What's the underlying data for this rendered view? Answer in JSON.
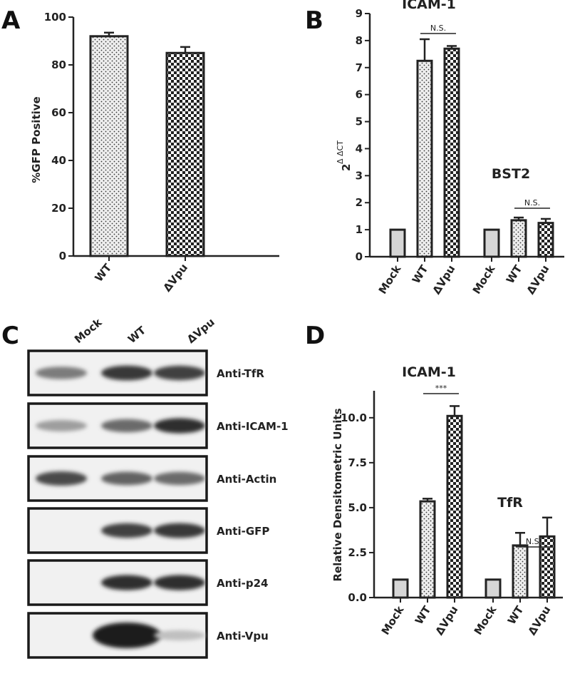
{
  "panels": {
    "A": "A",
    "B": "B",
    "C": "C",
    "D": "D"
  },
  "chart_data": [
    {
      "panel": "A",
      "type": "bar",
      "ylabel": "%GFP Positive",
      "ylim": [
        0,
        100
      ],
      "yticks": [
        "0",
        "20",
        "40",
        "60",
        "80",
        "100"
      ],
      "categories": [
        "WT",
        "ΔVpu"
      ],
      "values": [
        92,
        85
      ],
      "errors": [
        1.5,
        2.5
      ],
      "patterns": [
        "dots",
        "checker"
      ]
    },
    {
      "panel": "B",
      "type": "bar",
      "ylabel": "2",
      "ylabel_sup": "Δ ΔCT",
      "ylim": [
        0,
        9
      ],
      "yticks": [
        "0",
        "1",
        "2",
        "3",
        "4",
        "5",
        "6",
        "7",
        "8",
        "9"
      ],
      "groups": [
        {
          "title": "ICAM-1",
          "categories": [
            "Mock",
            "WT",
            "ΔVpu"
          ],
          "values": [
            1.0,
            7.25,
            7.7
          ],
          "errors": [
            0,
            0.8,
            0.1
          ],
          "significance": "N.S."
        },
        {
          "title": "BST2",
          "categories": [
            "Mock",
            "WT",
            "ΔVpu"
          ],
          "values": [
            1.0,
            1.35,
            1.25
          ],
          "errors": [
            0,
            0.1,
            0.15
          ],
          "significance": "N.S."
        }
      ],
      "patterns": [
        "plain",
        "dots",
        "checker"
      ]
    },
    {
      "panel": "D",
      "type": "bar",
      "ylabel": "Relative Densitometric Units",
      "ylim": [
        0,
        11.5
      ],
      "yticks": [
        "0.0",
        "2.5",
        "5.0",
        "7.5",
        "10.0"
      ],
      "groups": [
        {
          "title": "ICAM-1",
          "categories": [
            "Mock",
            "WT",
            "ΔVpu"
          ],
          "values": [
            1.0,
            5.35,
            10.1
          ],
          "errors": [
            0,
            0.15,
            0.55
          ],
          "significance": "***"
        },
        {
          "title": "TfR",
          "categories": [
            "Mock",
            "WT",
            "ΔVpu"
          ],
          "values": [
            1.0,
            2.9,
            3.4
          ],
          "errors": [
            0,
            0.7,
            1.05
          ],
          "significance": "N.S."
        }
      ],
      "patterns": [
        "plain",
        "dots",
        "checker"
      ]
    }
  ],
  "blot": {
    "lanes": [
      "Mock",
      "WT",
      "ΔVpu"
    ],
    "rows": [
      {
        "label": "Anti-TfR",
        "intensity": [
          0.45,
          0.85,
          0.8
        ]
      },
      {
        "label": "Anti-ICAM-1",
        "intensity": [
          0.25,
          0.55,
          0.9
        ]
      },
      {
        "label": "Anti-Actin",
        "intensity": [
          0.75,
          0.6,
          0.55
        ]
      },
      {
        "label": "Anti-GFP",
        "intensity": [
          0.0,
          0.8,
          0.85
        ]
      },
      {
        "label": "Anti-p24",
        "intensity": [
          0.0,
          0.9,
          0.9
        ]
      },
      {
        "label": "Anti-Vpu",
        "intensity": [
          0.0,
          1.0,
          0.05
        ]
      }
    ]
  }
}
